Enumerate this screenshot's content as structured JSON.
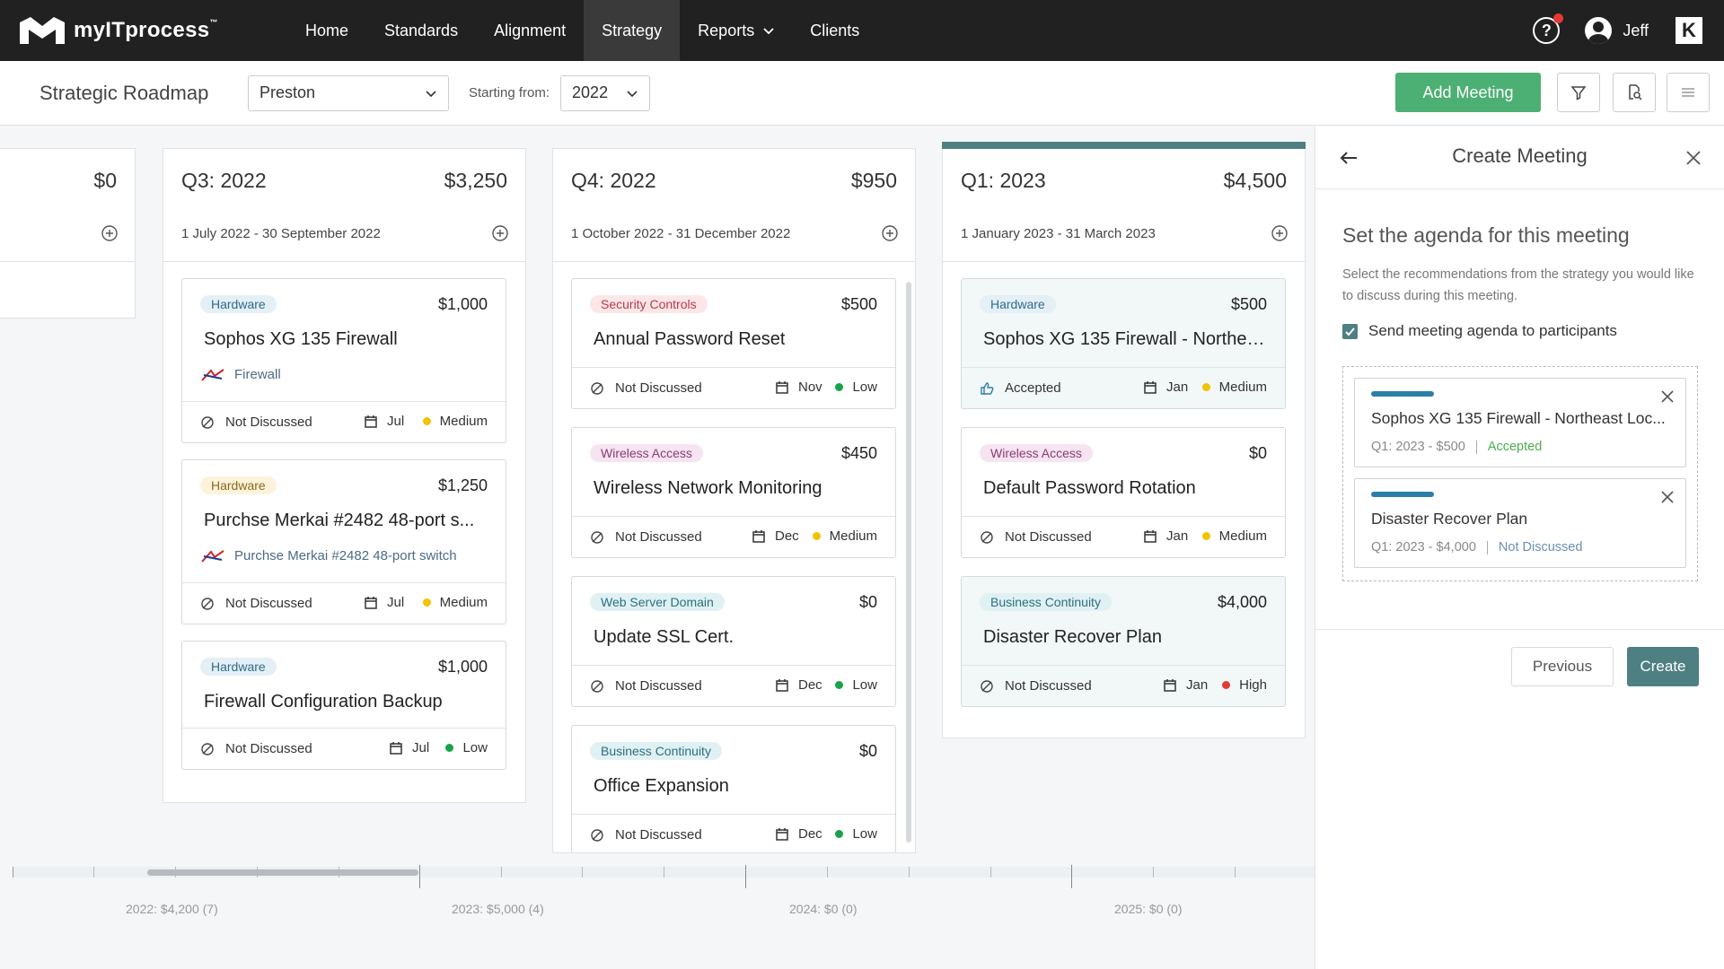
{
  "brand": {
    "name": "myITprocess",
    "tm": "™"
  },
  "nav": [
    {
      "label": "Home"
    },
    {
      "label": "Standards"
    },
    {
      "label": "Alignment"
    },
    {
      "label": "Strategy"
    },
    {
      "label": "Reports"
    },
    {
      "label": "Clients"
    }
  ],
  "user": {
    "name": "Jeff",
    "help_icon": "?",
    "k_logo": "K"
  },
  "subheader": {
    "title": "Strategic Roadmap",
    "client": "Preston",
    "starting_label": "Starting from:",
    "year": "2022",
    "add_meeting": "Add Meeting"
  },
  "columns": [
    {
      "title": "",
      "total": "$0",
      "range": ""
    },
    {
      "title": "Q3: 2022",
      "total": "$3,250",
      "range": "1 July 2022 - 30 September 2022",
      "cards": [
        {
          "tag": "Hardware",
          "amount": "$1,000",
          "title": "Sophos XG 135 Firewall",
          "vendor": "Firewall",
          "status": "Not Discussed",
          "month": "Jul",
          "priority": "Medium"
        },
        {
          "tag": "Hardware",
          "amount": "$1,250",
          "title": "Purchse Merkai #2482 48-port s...",
          "vendor": "Purchse Merkai #2482 48-port switch",
          "status": "Not Discussed",
          "month": "Jul",
          "priority": "Medium"
        },
        {
          "tag": "Hardware",
          "amount": "$1,000",
          "title": "Firewall Configuration Backup",
          "status": "Not Discussed",
          "month": "Jul",
          "priority": "Low"
        }
      ]
    },
    {
      "title": "Q4: 2022",
      "total": "$950",
      "range": "1 October 2022 - 31 December 2022",
      "cards": [
        {
          "tag": "Security Controls",
          "amount": "$500",
          "title": "Annual Password Reset",
          "status": "Not Discussed",
          "month": "Nov",
          "priority": "Low"
        },
        {
          "tag": "Wireless Access",
          "amount": "$450",
          "title": "Wireless Network Monitoring",
          "status": "Not Discussed",
          "month": "Dec",
          "priority": "Medium"
        },
        {
          "tag": "Web Server Domain",
          "amount": "$0",
          "title": "Update SSL Cert.",
          "status": "Not Discussed",
          "month": "Dec",
          "priority": "Low"
        },
        {
          "tag": "Business Continuity",
          "amount": "$0",
          "title": "Office Expansion",
          "status": "Not Discussed",
          "month": "Dec",
          "priority": "Low"
        }
      ]
    },
    {
      "title": "Q1: 2023",
      "total": "$4,500",
      "range": "1 January 2023 - 31 March 2023",
      "cards": [
        {
          "tag": "Hardware",
          "amount": "$500",
          "title": "Sophos XG 135 Firewall - Northea...",
          "status": "Accepted",
          "month": "Jan",
          "priority": "Medium"
        },
        {
          "tag": "Wireless Access",
          "amount": "$0",
          "title": "Default Password Rotation",
          "status": "Not Discussed",
          "month": "Jan",
          "priority": "Medium"
        },
        {
          "tag": "Business Continuity",
          "amount": "$4,000",
          "title": "Disaster Recover Plan",
          "status": "Not Discussed",
          "month": "Jan",
          "priority": "High"
        }
      ]
    }
  ],
  "timeline": [
    {
      "label": "2022: $4,200 (7)"
    },
    {
      "label": "2023: $5,000 (4)"
    },
    {
      "label": "2024: $0 (0)"
    },
    {
      "label": "2025: $0 (0)"
    }
  ],
  "panel": {
    "title": "Create Meeting",
    "heading": "Set the agenda for this meeting",
    "description": "Select the recommendations from the strategy you would like to discuss during this meeting.",
    "checkbox_label": "Send meeting agenda to participants",
    "agenda": [
      {
        "title": "Sophos XG 135 Firewall - Northeast Loc...",
        "meta": "Q1: 2023 - $500",
        "status": "Accepted"
      },
      {
        "title": "Disaster Recover Plan",
        "meta": "Q1: 2023 - $4,000",
        "status": "Not Discussed"
      }
    ],
    "previous": "Previous",
    "create": "Create"
  },
  "colors": {
    "accent": "#4e7f83",
    "green": "#4caf73",
    "topbar": "#212121"
  }
}
